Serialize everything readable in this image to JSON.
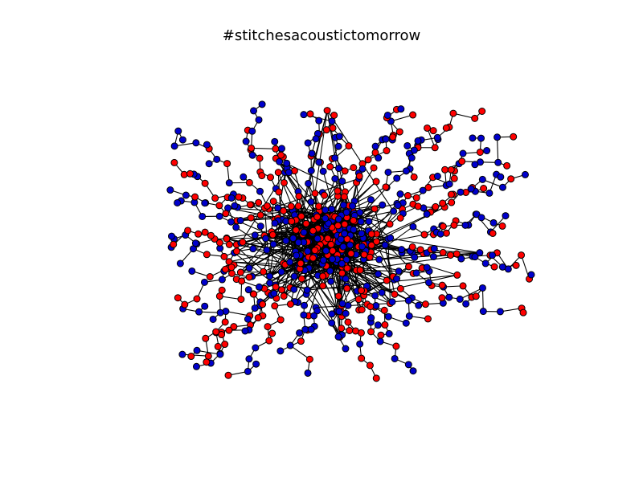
{
  "title": "#stitchesacoustictomorrow",
  "colors": {
    "red": "#ff0000",
    "blue": "#0000cc",
    "edge": "#000000"
  }
}
